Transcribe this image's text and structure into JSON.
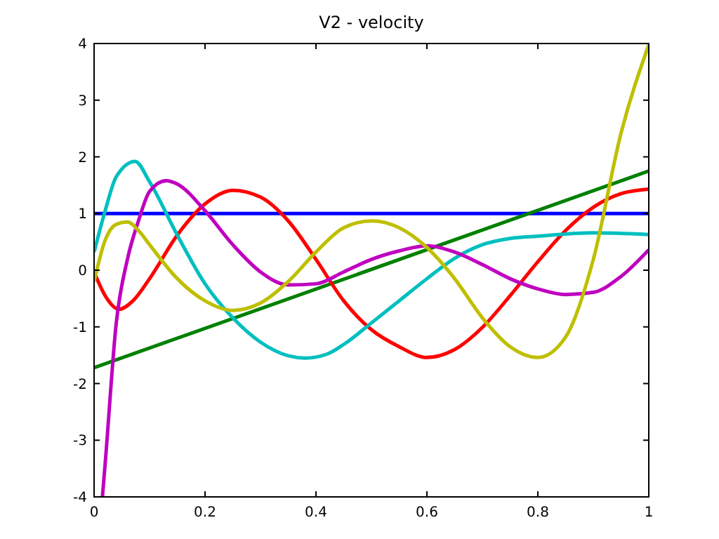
{
  "chart_data": {
    "type": "line",
    "title": "V2 - velocity",
    "xlim": [
      0,
      1
    ],
    "ylim": [
      -4,
      4
    ],
    "xticks": [
      0,
      0.2,
      0.4,
      0.6,
      0.8,
      1
    ],
    "yticks": [
      -4,
      -3,
      -2,
      -1,
      0,
      1,
      2,
      3,
      4
    ],
    "grid": false,
    "line_style": "solid",
    "marker": "none",
    "series": [
      {
        "color": "#0000ff",
        "x": [
          0,
          1
        ],
        "values": [
          1,
          1
        ]
      },
      {
        "color": "#008000",
        "x": [
          0,
          1
        ],
        "values": [
          -1.72,
          1.75
        ]
      },
      {
        "color": "#ff0000",
        "x": [
          0,
          0.02,
          0.045,
          0.07,
          0.1,
          0.15,
          0.2,
          0.25,
          0.3,
          0.35,
          0.4,
          0.45,
          0.5,
          0.55,
          0.6,
          0.65,
          0.7,
          0.75,
          0.8,
          0.85,
          0.9,
          0.95,
          1
        ],
        "values": [
          -0.03,
          -0.45,
          -0.69,
          -0.54,
          -0.15,
          0.62,
          1.17,
          1.41,
          1.29,
          0.87,
          0.19,
          -0.54,
          -1.05,
          -1.35,
          -1.54,
          -1.4,
          -1.01,
          -0.45,
          0.15,
          0.7,
          1.11,
          1.35,
          1.43
        ]
      },
      {
        "color": "#00bfbf",
        "x": [
          0,
          0.02,
          0.04,
          0.074,
          0.1,
          0.15,
          0.2,
          0.25,
          0.3,
          0.35,
          0.38,
          0.42,
          0.45,
          0.5,
          0.55,
          0.6,
          0.65,
          0.7,
          0.75,
          0.8,
          0.9,
          1
        ],
        "values": [
          0.32,
          1.05,
          1.65,
          1.92,
          1.56,
          0.62,
          -0.24,
          -0.84,
          -1.27,
          -1.51,
          -1.55,
          -1.48,
          -1.31,
          -0.93,
          -0.54,
          -0.15,
          0.21,
          0.45,
          0.56,
          0.6,
          0.66,
          0.63
        ]
      },
      {
        "color": "#bf00bf",
        "x": [
          0.015,
          0.02,
          0.04,
          0.06,
          0.08,
          0.1,
          0.13,
          0.15,
          0.2,
          0.25,
          0.3,
          0.35,
          0.4,
          0.45,
          0.5,
          0.55,
          0.6,
          0.65,
          0.7,
          0.75,
          0.8,
          0.85,
          0.9,
          0.95,
          1
        ],
        "values": [
          -4,
          -3.41,
          -0.93,
          0.19,
          0.87,
          1.39,
          1.58,
          1.52,
          1.05,
          0.45,
          -0.03,
          -0.26,
          -0.24,
          -0.03,
          0.19,
          0.34,
          0.43,
          0.32,
          0.1,
          -0.15,
          -0.33,
          -0.43,
          -0.39,
          -0.11,
          0.36
        ]
      },
      {
        "color": "#bfbf00",
        "x": [
          0,
          0.02,
          0.04,
          0.06,
          0.08,
          0.1,
          0.15,
          0.2,
          0.25,
          0.3,
          0.35,
          0.4,
          0.45,
          0.5,
          0.55,
          0.6,
          0.65,
          0.7,
          0.75,
          0.8,
          0.85,
          0.9,
          0.95,
          1
        ],
        "values": [
          -0.2,
          0.53,
          0.81,
          0.85,
          0.7,
          0.45,
          -0.15,
          -0.54,
          -0.71,
          -0.58,
          -0.2,
          0.32,
          0.75,
          0.87,
          0.75,
          0.4,
          -0.15,
          -0.84,
          -1.35,
          -1.54,
          -1.18,
          0.19,
          2.42,
          3.98
        ]
      }
    ]
  }
}
